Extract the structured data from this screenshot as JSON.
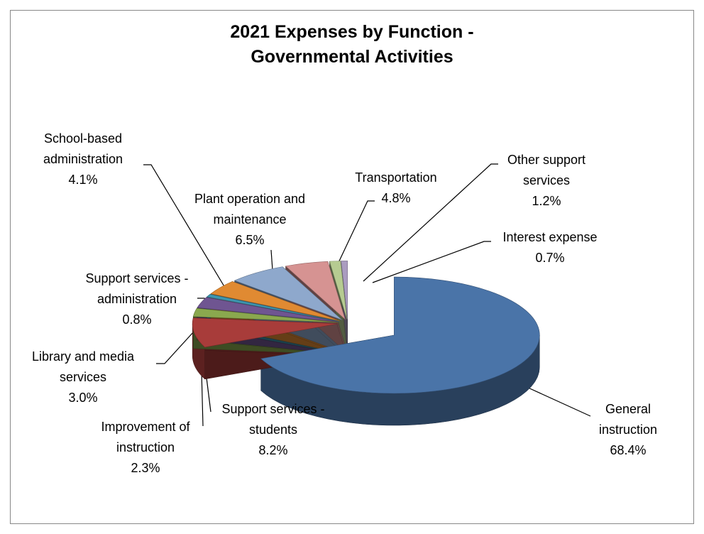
{
  "chart_data": {
    "type": "pie",
    "title": "2021 Expenses by Function - Governmental Activities",
    "categories": [
      "General instruction",
      "Support services - students",
      "Improvement of instruction",
      "Library and media services",
      "Support services - administration",
      "School-based administration",
      "Plant operation and maintenance",
      "Transportation",
      "Other support services",
      "Interest expense"
    ],
    "values": [
      68.4,
      8.2,
      2.3,
      3.0,
      0.8,
      4.1,
      6.5,
      4.8,
      1.2,
      0.7
    ],
    "value_labels": [
      "68.4%",
      "8.2%",
      "2.3%",
      "3.0%",
      "0.8%",
      "4.1%",
      "6.5%",
      "4.8%",
      "1.2%",
      "0.7%"
    ],
    "colors": [
      "#4a74a8",
      "#a83c3a",
      "#8aa84e",
      "#6f5591",
      "#3e95ae",
      "#e08a32",
      "#8ea8cc",
      "#d69392",
      "#b6cb91",
      "#aa9cc0"
    ]
  }
}
